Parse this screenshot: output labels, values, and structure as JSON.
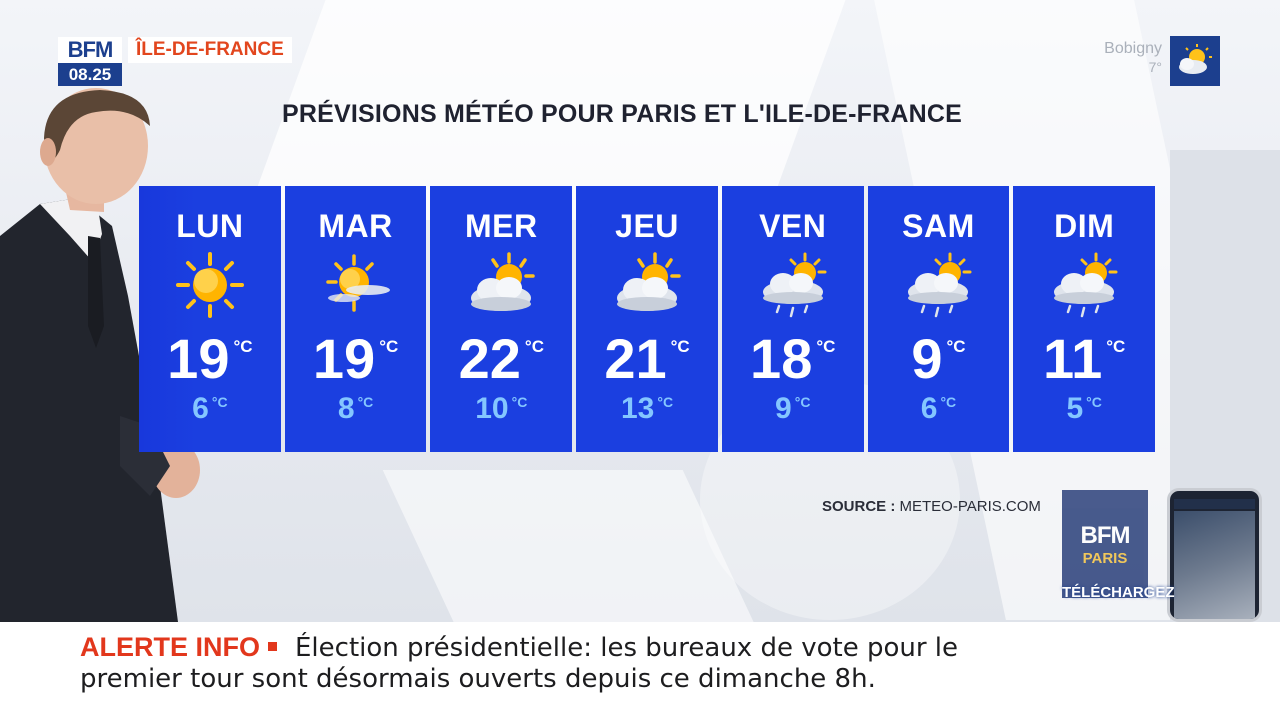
{
  "channel": {
    "logo_text": "BFM",
    "time": "08.25",
    "region": "ÎLE-DE-FRANCE"
  },
  "city_weather": {
    "city": "Bobigny",
    "temp": "7°",
    "icon": "sun-cloud-icon"
  },
  "title": "PRÉVISIONS MÉTÉO POUR PARIS ET L'ILE-DE-FRANCE",
  "unit": "°C",
  "days": [
    {
      "name": "LUN",
      "icon": "sun-icon",
      "max": "19",
      "min": "6"
    },
    {
      "name": "MAR",
      "icon": "sun-haze-icon",
      "max": "19",
      "min": "8"
    },
    {
      "name": "MER",
      "icon": "sun-cloud-icon",
      "max": "22",
      "min": "10"
    },
    {
      "name": "JEU",
      "icon": "sun-cloud-icon",
      "max": "21",
      "min": "13"
    },
    {
      "name": "VEN",
      "icon": "sun-rain-icon",
      "max": "18",
      "min": "9"
    },
    {
      "name": "SAM",
      "icon": "sun-rain-icon",
      "max": "9",
      "min": "6"
    },
    {
      "name": "DIM",
      "icon": "sun-rain-icon",
      "max": "11",
      "min": "5"
    }
  ],
  "source": {
    "label": "SOURCE :",
    "value": "METEO-PARIS.COM"
  },
  "promo": {
    "logo_a": "BFM",
    "logo_b": "PARIS",
    "cta": "TÉLÉCHARGEZ"
  },
  "ticker": {
    "label": "ALERTE INFO",
    "line1": "Élection présidentielle: les bureaux de vote pour le",
    "line2": "premier tour sont désormais ouverts depuis ce dimanche 8h."
  },
  "colors": {
    "tile_blue": "#1b3fe0",
    "min_temp": "#84c6ff",
    "alert_red": "#e2371c",
    "brand_blue": "#1c3f8e"
  }
}
